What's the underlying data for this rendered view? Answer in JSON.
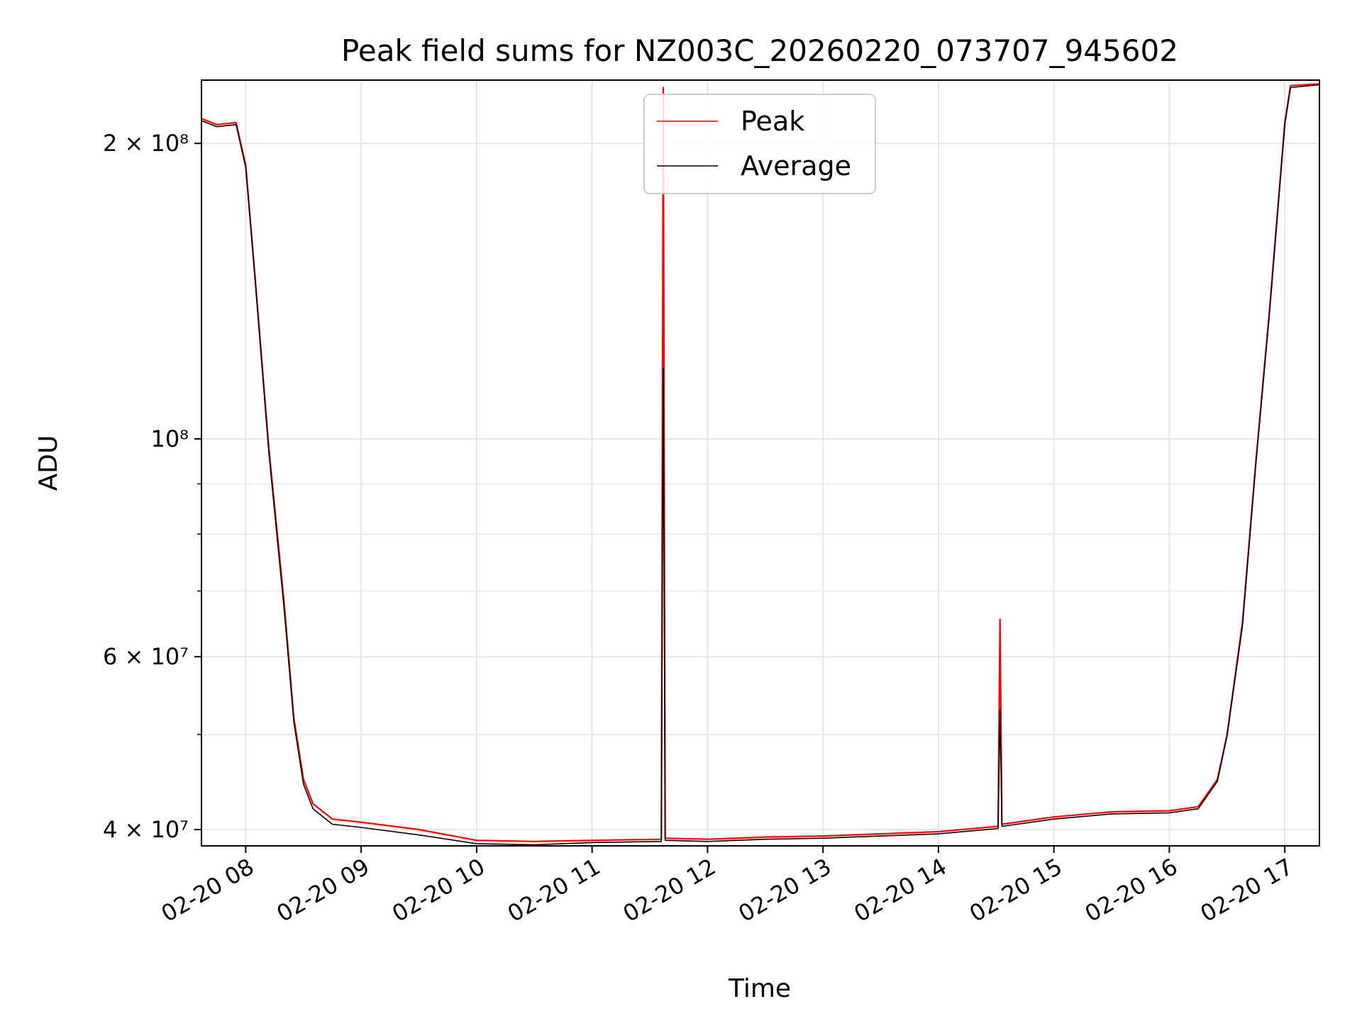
{
  "chart_data": {
    "type": "line",
    "title": "Peak field sums for NZ003C_20260220_073707_945602",
    "xlabel": "Time",
    "ylabel": "ADU",
    "x_tick_labels": [
      "02-20 08",
      "02-20 09",
      "02-20 10",
      "02-20 11",
      "02-20 12",
      "02-20 13",
      "02-20 14",
      "02-20 15",
      "02-20 16",
      "02-20 17"
    ],
    "x_ticks": [
      "2026-02-20 08:00",
      "2026-02-20 09:00",
      "2026-02-20 10:00",
      "2026-02-20 11:00",
      "2026-02-20 12:00",
      "2026-02-20 13:00",
      "2026-02-20 14:00",
      "2026-02-20 15:00",
      "2026-02-20 16:00",
      "2026-02-20 17:00"
    ],
    "y_scale": "log",
    "y_tick_labels": [
      {
        "value": 40000000,
        "label": "4 × 10⁷"
      },
      {
        "value": 60000000,
        "label": "6 × 10⁷"
      },
      {
        "value": 100000000,
        "label": "10⁸"
      },
      {
        "value": 200000000,
        "label": "2 × 10⁸"
      }
    ],
    "y_minor_ticks": [
      50000000,
      70000000,
      80000000,
      90000000
    ],
    "xlim": [
      "2026-02-20 07:37",
      "2026-02-20 17:18"
    ],
    "ylim": [
      38500000,
      232000000
    ],
    "grid": true,
    "legend_position": "upper center",
    "series": [
      {
        "name": "Peak",
        "color": "#ff0000",
        "points": [
          [
            "2026-02-20 07:37",
            212000000
          ],
          [
            "2026-02-20 07:45",
            209000000
          ],
          [
            "2026-02-20 07:55",
            210000000
          ],
          [
            "2026-02-20 08:00",
            190000000
          ],
          [
            "2026-02-20 08:05",
            145000000
          ],
          [
            "2026-02-20 08:12",
            98000000
          ],
          [
            "2026-02-20 08:20",
            68000000
          ],
          [
            "2026-02-20 08:25",
            52000000
          ],
          [
            "2026-02-20 08:30",
            45000000
          ],
          [
            "2026-02-20 08:35",
            42500000
          ],
          [
            "2026-02-20 08:45",
            41000000
          ],
          [
            "2026-02-20 09:00",
            40700000
          ],
          [
            "2026-02-20 09:30",
            40000000
          ],
          [
            "2026-02-20 10:00",
            39000000
          ],
          [
            "2026-02-20 10:30",
            38900000
          ],
          [
            "2026-02-20 11:00",
            39000000
          ],
          [
            "2026-02-20 11:36",
            39100000
          ],
          [
            "2026-02-20 11:37",
            228000000
          ],
          [
            "2026-02-20 11:38",
            39200000
          ],
          [
            "2026-02-20 12:00",
            39100000
          ],
          [
            "2026-02-20 12:30",
            39300000
          ],
          [
            "2026-02-20 13:00",
            39400000
          ],
          [
            "2026-02-20 13:30",
            39600000
          ],
          [
            "2026-02-20 14:00",
            39800000
          ],
          [
            "2026-02-20 14:31",
            40300000
          ],
          [
            "2026-02-20 14:32",
            65500000
          ],
          [
            "2026-02-20 14:33",
            40500000
          ],
          [
            "2026-02-20 15:00",
            41200000
          ],
          [
            "2026-02-20 15:30",
            41700000
          ],
          [
            "2026-02-20 16:00",
            41800000
          ],
          [
            "2026-02-20 16:15",
            42200000
          ],
          [
            "2026-02-20 16:25",
            45000000
          ],
          [
            "2026-02-20 16:30",
            50000000
          ],
          [
            "2026-02-20 16:38",
            65000000
          ],
          [
            "2026-02-20 16:45",
            95000000
          ],
          [
            "2026-02-20 16:52",
            135000000
          ],
          [
            "2026-02-20 17:00",
            210000000
          ],
          [
            "2026-02-20 17:03",
            229000000
          ],
          [
            "2026-02-20 17:18",
            230000000
          ]
        ]
      },
      {
        "name": "Average",
        "color": "#000000",
        "points": [
          [
            "2026-02-20 07:37",
            211000000
          ],
          [
            "2026-02-20 07:45",
            208000000
          ],
          [
            "2026-02-20 07:55",
            209000000
          ],
          [
            "2026-02-20 08:00",
            189000000
          ],
          [
            "2026-02-20 08:05",
            144000000
          ],
          [
            "2026-02-20 08:12",
            97000000
          ],
          [
            "2026-02-20 08:20",
            67000000
          ],
          [
            "2026-02-20 08:25",
            51500000
          ],
          [
            "2026-02-20 08:30",
            44500000
          ],
          [
            "2026-02-20 08:35",
            42000000
          ],
          [
            "2026-02-20 08:45",
            40500000
          ],
          [
            "2026-02-20 09:00",
            40200000
          ],
          [
            "2026-02-20 09:30",
            39500000
          ],
          [
            "2026-02-20 10:00",
            38700000
          ],
          [
            "2026-02-20 10:30",
            38600000
          ],
          [
            "2026-02-20 11:00",
            38800000
          ],
          [
            "2026-02-20 11:36",
            38900000
          ],
          [
            "2026-02-20 11:37",
            118000000
          ],
          [
            "2026-02-20 11:38",
            39000000
          ],
          [
            "2026-02-20 12:00",
            38900000
          ],
          [
            "2026-02-20 12:30",
            39100000
          ],
          [
            "2026-02-20 13:00",
            39200000
          ],
          [
            "2026-02-20 13:30",
            39400000
          ],
          [
            "2026-02-20 14:00",
            39600000
          ],
          [
            "2026-02-20 14:31",
            40100000
          ],
          [
            "2026-02-20 14:32",
            53000000
          ],
          [
            "2026-02-20 14:33",
            40300000
          ],
          [
            "2026-02-20 15:00",
            41000000
          ],
          [
            "2026-02-20 15:30",
            41500000
          ],
          [
            "2026-02-20 16:00",
            41600000
          ],
          [
            "2026-02-20 16:15",
            42000000
          ],
          [
            "2026-02-20 16:25",
            44800000
          ],
          [
            "2026-02-20 16:30",
            49800000
          ],
          [
            "2026-02-20 16:38",
            64500000
          ],
          [
            "2026-02-20 16:45",
            94500000
          ],
          [
            "2026-02-20 16:52",
            134000000
          ],
          [
            "2026-02-20 17:00",
            209000000
          ],
          [
            "2026-02-20 17:03",
            228000000
          ],
          [
            "2026-02-20 17:18",
            229500000
          ]
        ]
      }
    ]
  }
}
